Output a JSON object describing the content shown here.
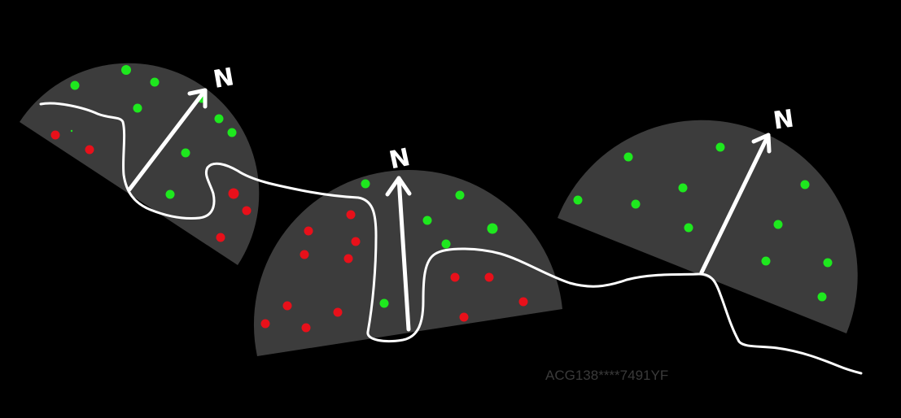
{
  "colors": {
    "background": "#000000",
    "dome": "#3c3c3c",
    "river": "#ffffff",
    "arrow": "#ffffff",
    "sunny_dot": "#1ee81e",
    "shaded_dot": "#e8101a",
    "watermark": "#3a3a3a"
  },
  "domes": [
    {
      "north_label": "N",
      "green_dots": 10,
      "red_dots": 5
    },
    {
      "north_label": "N",
      "green_dots": 7,
      "red_dots": 16
    },
    {
      "north_label": "N",
      "green_dots": 12,
      "red_dots": 0
    }
  ],
  "watermark": "ACG138****7491YF"
}
